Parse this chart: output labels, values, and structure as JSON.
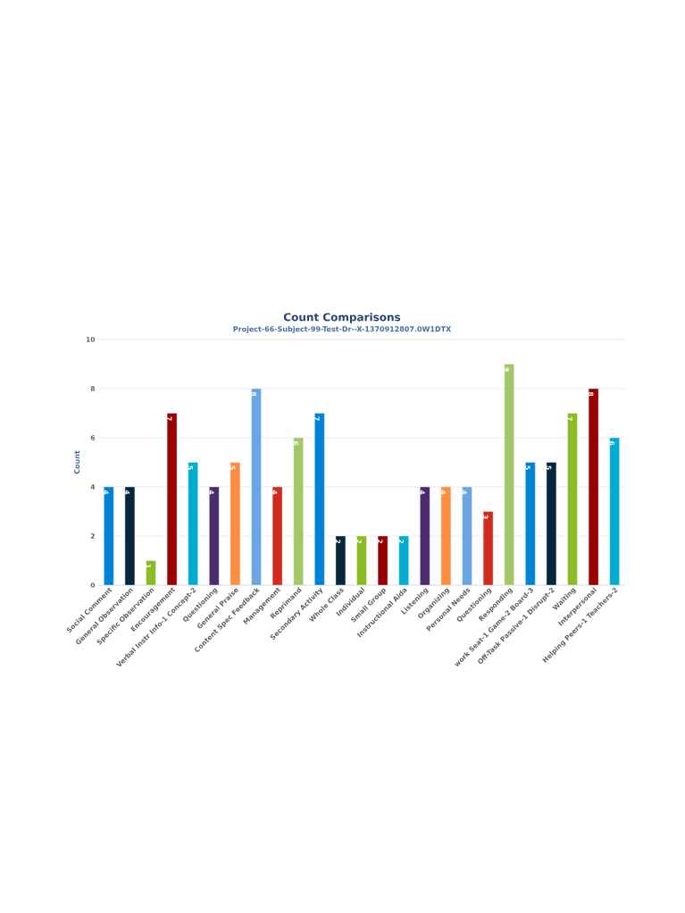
{
  "chart_data": {
    "type": "bar",
    "title": "Count Comparisons",
    "subtitle": "Project-66-Subject-99-Test-Dr--X-1370912807.0W1DTX",
    "ylabel": "Count",
    "categories": [
      "Social Comment",
      "General Observation",
      "Specific Observation",
      "Encouragement",
      "Verbal Instr Info-1 Concept-2",
      "Questioning",
      "General Praise",
      "Content Spec Feedback",
      "Management",
      "Reprimand",
      "Secondary Activity",
      "Whole Class",
      "Individual",
      "Small Group",
      "Instructional Aida",
      "Listening",
      "Organizing",
      "Personal Needs",
      "Questioning",
      "Responding",
      "work Seat-1 Game-2 Board-3",
      "Off-Task Passive-1 Disrupt-2",
      "Waiting",
      "Interpersonal",
      "Helping Peers-1 Teachers-2"
    ],
    "values": [
      4,
      4,
      1,
      7,
      5,
      4,
      5,
      8,
      4,
      6,
      7,
      2,
      2,
      2,
      2,
      4,
      4,
      4,
      3,
      9,
      5,
      5,
      7,
      8,
      6
    ],
    "colors": [
      "#0083d6",
      "#06263b",
      "#8bbb26",
      "#990000",
      "#00acd0",
      "#4a2c6e",
      "#ff8d3f",
      "#6ba5e2",
      "#d12b1e",
      "#a5c76a",
      "#0083d6",
      "#06263b",
      "#8bbb26",
      "#990000",
      "#00acd0",
      "#4a2c6e",
      "#ff8d3f",
      "#6ba5e2",
      "#d12b1e",
      "#a5c76a",
      "#0083d6",
      "#06263b",
      "#8bbb26",
      "#990000",
      "#00acd0"
    ],
    "ylim": [
      0,
      10
    ],
    "yticks": [
      0,
      2,
      4,
      6,
      8,
      10
    ],
    "grid": "y",
    "data_labels": true
  }
}
